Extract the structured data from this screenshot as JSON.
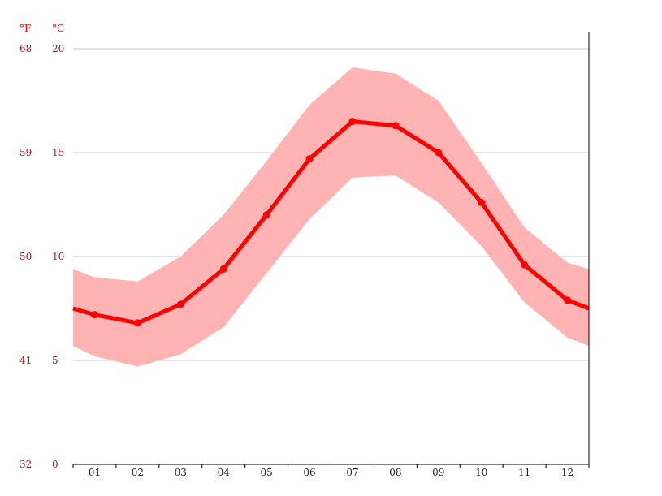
{
  "chart_data": {
    "type": "line",
    "title": "",
    "xlabel": "",
    "ylabel": "",
    "categories": [
      "01",
      "02",
      "03",
      "04",
      "05",
      "06",
      "07",
      "08",
      "09",
      "10",
      "11",
      "12"
    ],
    "units": {
      "fahrenheit": "°F",
      "celsius": "°C"
    },
    "y_ticks_celsius": [
      "0",
      "5",
      "10",
      "15",
      "20"
    ],
    "y_ticks_fahrenheit": [
      "32",
      "41",
      "50",
      "59",
      "68"
    ],
    "ylim": [
      0,
      20
    ],
    "grid": true,
    "legend": "none",
    "series": [
      {
        "role": "average",
        "values": [
          7.2,
          6.8,
          7.7,
          9.4,
          12.0,
          14.7,
          16.5,
          16.3,
          15.0,
          12.6,
          9.6,
          7.9
        ]
      },
      {
        "role": "range-max",
        "values": [
          9.0,
          8.8,
          10.0,
          12.0,
          14.6,
          17.3,
          19.1,
          18.8,
          17.5,
          14.5,
          11.4,
          9.7
        ]
      },
      {
        "role": "range-min",
        "values": [
          5.2,
          4.7,
          5.3,
          6.6,
          9.2,
          11.8,
          13.8,
          13.9,
          12.6,
          10.5,
          7.8,
          6.1
        ]
      }
    ],
    "edge_values": {
      "average": {
        "start": 7.5,
        "end": 7.5
      },
      "range-max": {
        "start": 9.4,
        "end": 9.4
      },
      "range-min": {
        "start": 5.7,
        "end": 5.7
      }
    },
    "colors": {
      "line": "#ff0000",
      "band": "#ffb3b3",
      "grid": "#c8c8c8",
      "axis": "#000000",
      "labels": "#dd0000",
      "tick_text": "#222222"
    }
  }
}
